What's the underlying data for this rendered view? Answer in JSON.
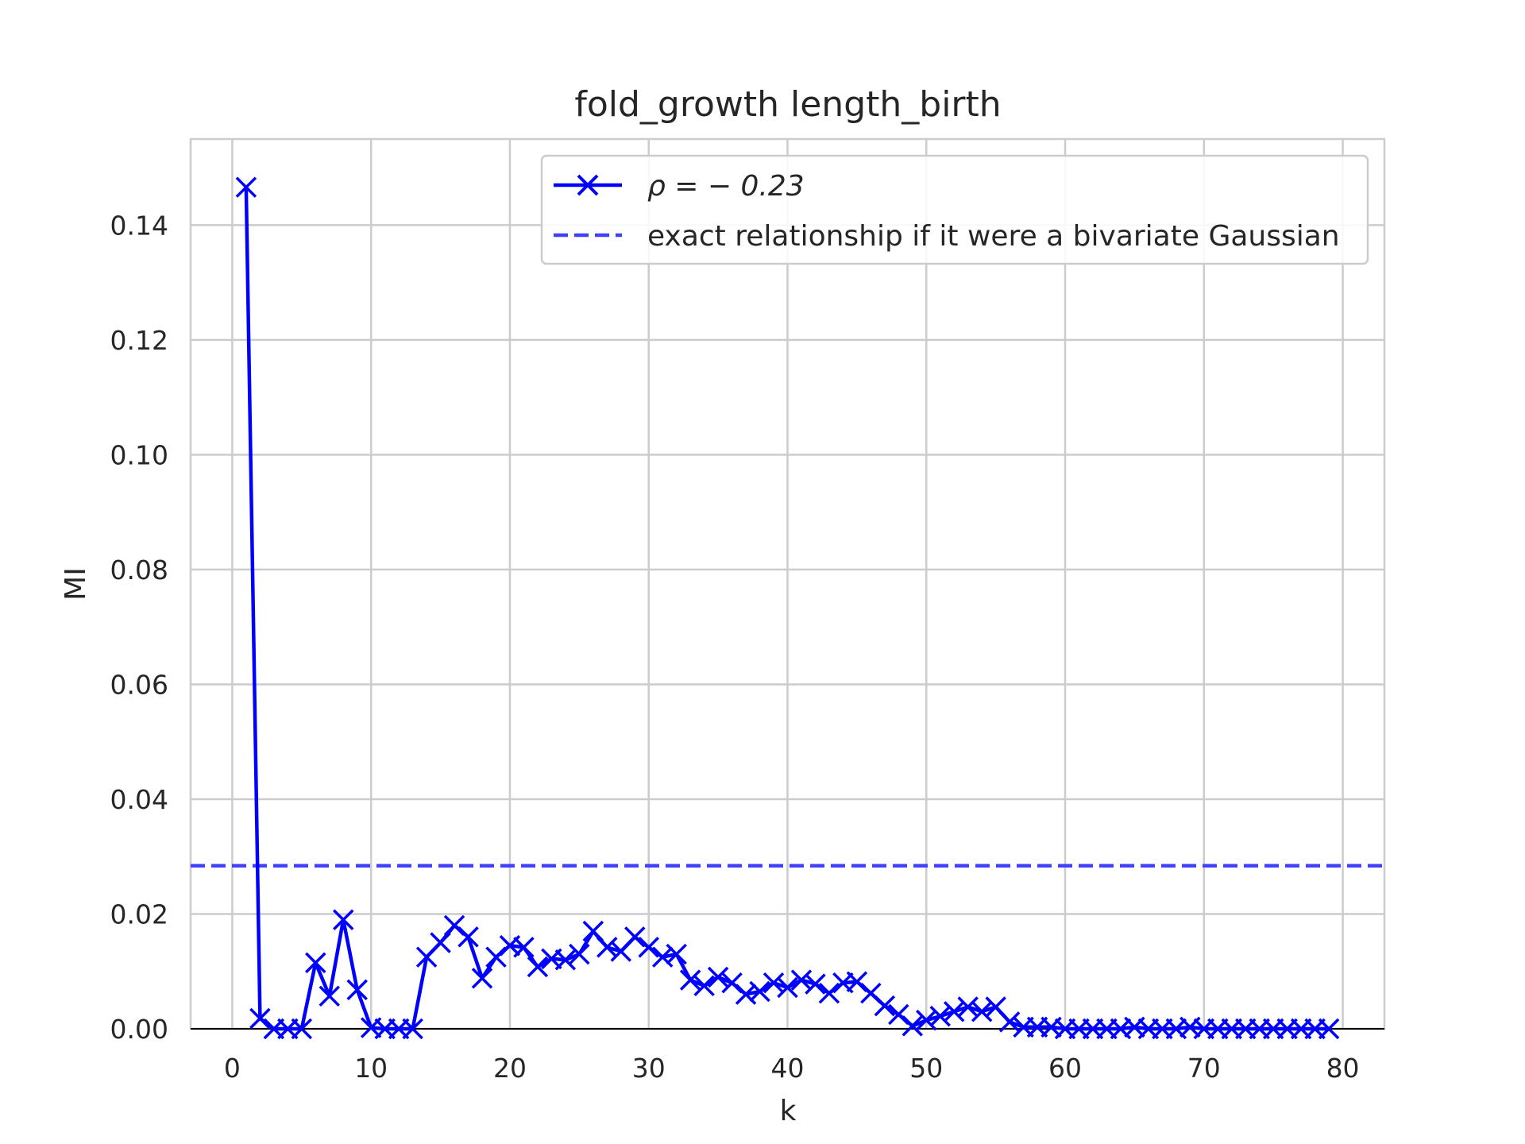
{
  "chart_data": {
    "type": "line",
    "title": "fold_growth length_birth",
    "xlabel": "k",
    "ylabel": "MI",
    "xlim": [
      -3,
      83
    ],
    "ylim": [
      0,
      0.155
    ],
    "xticks": [
      0,
      10,
      20,
      30,
      40,
      50,
      60,
      70,
      80
    ],
    "yticks": [
      0.0,
      0.02,
      0.04,
      0.06,
      0.08,
      0.1,
      0.12,
      0.14
    ],
    "xtick_labels": [
      "0",
      "10",
      "20",
      "30",
      "40",
      "50",
      "60",
      "70",
      "80"
    ],
    "ytick_labels": [
      "0.00",
      "0.02",
      "0.04",
      "0.06",
      "0.08",
      "0.10",
      "0.12",
      "0.14"
    ],
    "grid": true,
    "legend_position": "top-right",
    "series": [
      {
        "name": "ρ = − 0.23",
        "color": "#0000ff",
        "marker": "x",
        "x": [
          1,
          2,
          3,
          4,
          5,
          6,
          7,
          8,
          9,
          10,
          11,
          12,
          13,
          14,
          15,
          16,
          17,
          18,
          19,
          20,
          21,
          22,
          23,
          24,
          25,
          26,
          27,
          28,
          29,
          30,
          31,
          32,
          33,
          34,
          35,
          36,
          37,
          38,
          39,
          40,
          41,
          42,
          43,
          44,
          45,
          46,
          47,
          48,
          49,
          50,
          51,
          52,
          53,
          54,
          55,
          56,
          57,
          58,
          59,
          60,
          61,
          62,
          63,
          64,
          65,
          66,
          67,
          68,
          69,
          70,
          71,
          72,
          73,
          74,
          75,
          76,
          77,
          78,
          79
        ],
        "y": [
          0.1466,
          0.0018,
          0,
          0,
          0,
          0.0115,
          0.0057,
          0.019,
          0.0068,
          0.0002,
          0,
          0,
          0,
          0.0125,
          0.015,
          0.018,
          0.016,
          0.0088,
          0.0125,
          0.0145,
          0.0142,
          0.0108,
          0.0122,
          0.012,
          0.013,
          0.017,
          0.0142,
          0.0135,
          0.016,
          0.0142,
          0.0125,
          0.013,
          0.0085,
          0.0075,
          0.009,
          0.008,
          0.006,
          0.0065,
          0.008,
          0.0072,
          0.0085,
          0.0078,
          0.0062,
          0.008,
          0.0082,
          0.0062,
          0.004,
          0.0025,
          0.0005,
          0.0015,
          0.0022,
          0.003,
          0.0038,
          0.003,
          0.0038,
          0.0012,
          0.0003,
          0.0003,
          0.0003,
          0,
          0,
          0,
          0,
          0,
          0.0003,
          0,
          0,
          0,
          0.0003,
          0,
          0,
          0,
          0,
          0,
          0,
          0,
          0,
          0,
          0
        ]
      },
      {
        "name": "exact relationship if it were a bivariate Gaussian",
        "color": "#4040ff",
        "style": "dashed",
        "y_constant": 0.0284
      }
    ]
  }
}
